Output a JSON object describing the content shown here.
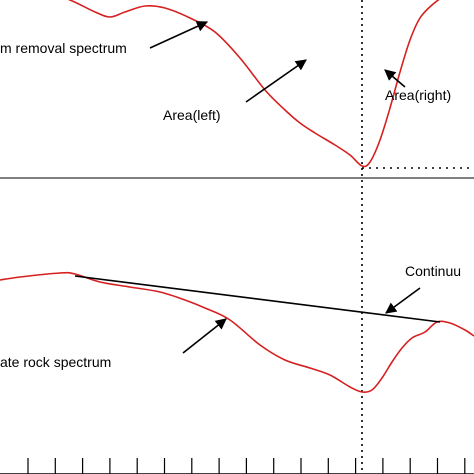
{
  "chart_data": {
    "type": "line",
    "annotations": {
      "removal_label": "m removal spectrum",
      "area_left": "Area(left)",
      "area_right": "Area(right)",
      "continuum_label": "Continuu",
      "rock_label": "ate rock spectrum"
    },
    "colors": {
      "spectrum": "#d62020",
      "continuum": "#000000",
      "axis": "#000000"
    },
    "ylim": [
      0,
      474
    ],
    "series": [
      {
        "values": [
          [
            0,
            -20
          ],
          [
            40,
            -10
          ],
          [
            70,
            0
          ],
          [
            95,
            12
          ],
          [
            110,
            17
          ],
          [
            125,
            12
          ],
          [
            145,
            6
          ],
          [
            165,
            8
          ],
          [
            190,
            18
          ],
          [
            215,
            32
          ],
          [
            240,
            58
          ],
          [
            265,
            90
          ],
          [
            285,
            110
          ],
          [
            300,
            123
          ],
          [
            315,
            133
          ],
          [
            335,
            145
          ],
          [
            350,
            155
          ],
          [
            362,
            166
          ],
          [
            370,
            162
          ],
          [
            380,
            140
          ],
          [
            390,
            108
          ],
          [
            400,
            72
          ],
          [
            410,
            40
          ],
          [
            420,
            18
          ],
          [
            432,
            5
          ],
          [
            445,
            -5
          ]
        ]
      },
      {
        "values": [
          [
            0,
            280
          ],
          [
            20,
            277
          ],
          [
            60,
            273
          ],
          [
            75,
            274
          ],
          [
            100,
            282
          ],
          [
            130,
            287
          ],
          [
            160,
            292
          ],
          [
            185,
            300
          ],
          [
            205,
            308
          ],
          [
            230,
            320
          ],
          [
            260,
            345
          ],
          [
            285,
            360
          ],
          [
            310,
            368
          ],
          [
            330,
            375
          ],
          [
            350,
            387
          ],
          [
            362,
            392
          ],
          [
            372,
            390
          ],
          [
            382,
            378
          ],
          [
            392,
            362
          ],
          [
            402,
            348
          ],
          [
            412,
            338
          ],
          [
            425,
            332
          ],
          [
            437,
            322
          ],
          [
            450,
            323
          ],
          [
            465,
            330
          ],
          [
            474,
            336
          ]
        ]
      },
      {
        "values": [
          [
            75,
            276
          ],
          [
            440,
            322
          ]
        ]
      }
    ],
    "vline_x": 362,
    "hline": {
      "x_start": 362,
      "y": 168
    },
    "separator_y": 0,
    "x_ticks": {
      "start": 28,
      "step": 27.3,
      "count": 17,
      "top": 458,
      "bottom": 474
    },
    "arrows": [
      {
        "from": [
          150,
          48
        ],
        "to": [
          207,
          22
        ]
      },
      {
        "from": [
          246,
          102
        ],
        "to": [
          306,
          60
        ]
      },
      {
        "from": [
          405,
          87
        ],
        "to": [
          385,
          70
        ]
      },
      {
        "from": [
          420,
          288
        ],
        "to": [
          386,
          313
        ]
      },
      {
        "from": [
          183,
          353
        ],
        "to": [
          226,
          319
        ]
      }
    ]
  }
}
